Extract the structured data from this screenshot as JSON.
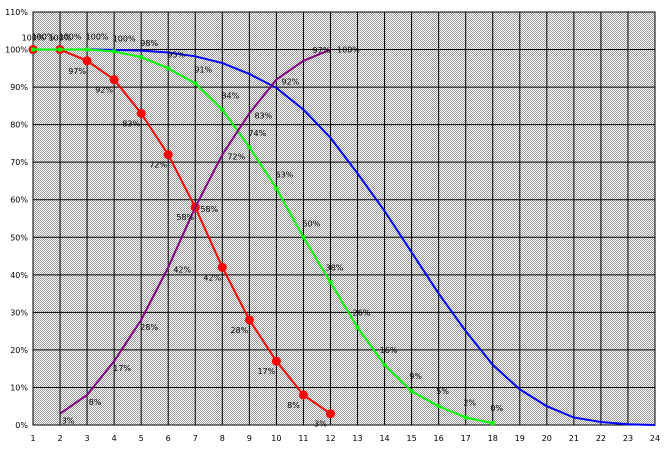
{
  "chart_data": {
    "type": "line",
    "title": "",
    "xlabel": "",
    "ylabel": "",
    "xlim": [
      1,
      24
    ],
    "ylim": [
      0,
      110
    ],
    "grid": true,
    "legend": "none",
    "x_ticks": [
      "1",
      "2",
      "3",
      "4",
      "5",
      "6",
      "7",
      "8",
      "9",
      "10",
      "11",
      "12",
      "13",
      "14",
      "15",
      "16",
      "17",
      "18",
      "19",
      "20",
      "21",
      "22",
      "23",
      "24"
    ],
    "y_ticks": [
      {
        "v": 0,
        "t": "0%"
      },
      {
        "v": 10,
        "t": "10%"
      },
      {
        "v": 20,
        "t": "20%"
      },
      {
        "v": 30,
        "t": "30%"
      },
      {
        "v": 40,
        "t": "40%"
      },
      {
        "v": 50,
        "t": "50%"
      },
      {
        "v": 60,
        "t": "60%"
      },
      {
        "v": 70,
        "t": "70%"
      },
      {
        "v": 80,
        "t": "80%"
      },
      {
        "v": 90,
        "t": "90%"
      },
      {
        "v": 100,
        "t": "100%"
      },
      {
        "v": 110,
        "t": "110%"
      }
    ],
    "series": [
      {
        "color": "#0000ff",
        "marker": "none",
        "x": [
          1,
          2,
          3,
          4,
          5,
          6,
          7,
          8,
          9,
          10,
          11,
          12,
          13,
          14,
          15,
          16,
          17,
          18,
          19,
          20,
          21,
          22,
          23,
          24
        ],
        "y": [
          100,
          100,
          100,
          99.9,
          99.7,
          99.2,
          98.2,
          96.4,
          93.5,
          89.8,
          84,
          76.5,
          67,
          57,
          46,
          35,
          25,
          16,
          9.5,
          5,
          2,
          0.8,
          0.2,
          0
        ],
        "labels": []
      },
      {
        "color": "#ff0000",
        "marker": "circle",
        "x": [
          1,
          2,
          3,
          4,
          5,
          6,
          7,
          8,
          9,
          10,
          11,
          12
        ],
        "y": [
          100,
          100,
          97,
          92,
          83,
          72,
          58,
          42,
          28,
          17,
          8,
          3
        ],
        "labels": [
          "100%",
          "100%",
          "97%",
          "92%",
          "83%",
          "72%",
          "58%",
          "42%",
          "28%",
          "17%",
          "8%",
          "3%"
        ]
      },
      {
        "color": "#00ff00",
        "marker": "square",
        "x": [
          1,
          2,
          3,
          4,
          5,
          6,
          7,
          8,
          9,
          10,
          11,
          12,
          13,
          14,
          15,
          16,
          17,
          18
        ],
        "y": [
          100,
          100,
          100,
          99.5,
          98,
          95,
          91,
          84,
          74,
          63,
          50,
          38,
          26,
          16,
          9,
          5,
          2,
          0.5
        ],
        "labels": [
          "100%",
          "100%",
          "100%",
          "100%",
          "98%",
          "95%",
          "91%",
          "84%",
          "74%",
          "63%",
          "50%",
          "38%",
          "26%",
          "16%",
          "9%",
          "5%",
          "2%",
          "0%"
        ]
      },
      {
        "color": "#800080",
        "marker": "none",
        "x": [
          2,
          3,
          4,
          5,
          6,
          7,
          8,
          9,
          10,
          11,
          12
        ],
        "y": [
          3,
          8,
          17,
          28,
          42,
          58,
          72,
          83,
          92,
          97,
          100
        ],
        "labels": [
          "3%",
          "8%",
          "17%",
          "28%",
          "42%",
          "58%",
          "72%",
          "83%",
          "92%",
          "97%",
          "100%"
        ]
      }
    ]
  }
}
